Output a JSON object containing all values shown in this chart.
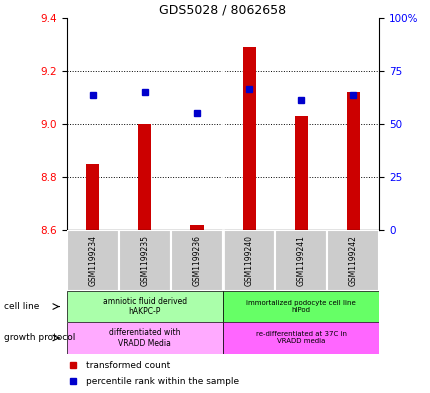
{
  "title": "GDS5028 / 8062658",
  "samples": [
    "GSM1199234",
    "GSM1199235",
    "GSM1199236",
    "GSM1199240",
    "GSM1199241",
    "GSM1199242"
  ],
  "bar_values": [
    8.85,
    9.0,
    8.62,
    9.29,
    9.03,
    9.12
  ],
  "bar_bottom": 8.6,
  "percentile_values": [
    9.11,
    9.12,
    9.04,
    9.13,
    9.09,
    9.11
  ],
  "ylim_left": [
    8.6,
    9.4
  ],
  "ylim_right": [
    0,
    100
  ],
  "yticks_left": [
    8.6,
    8.8,
    9.0,
    9.2,
    9.4
  ],
  "yticks_right": [
    0,
    25,
    50,
    75,
    100
  ],
  "ytick_right_labels": [
    "0",
    "25",
    "50",
    "75",
    "100%"
  ],
  "bar_color": "#cc0000",
  "percentile_color": "#0000cc",
  "group1_color": "#aaffaa",
  "group2_color": "#66ff66",
  "protocol1_color": "#ffaaff",
  "protocol2_color": "#ff66ff",
  "sample_bg_color": "#cccccc",
  "cell_line_labels": [
    "amniotic fluid derived\nhAKPC-P",
    "immortalized podocyte cell line\nhIPod"
  ],
  "protocol_labels": [
    "differentiated with\nVRADD Media",
    "re-differentiated at 37C in\nVRADD media"
  ],
  "group_split": 3,
  "legend_red_label": "transformed count",
  "legend_blue_label": "percentile rank within the sample",
  "bar_width": 0.25
}
